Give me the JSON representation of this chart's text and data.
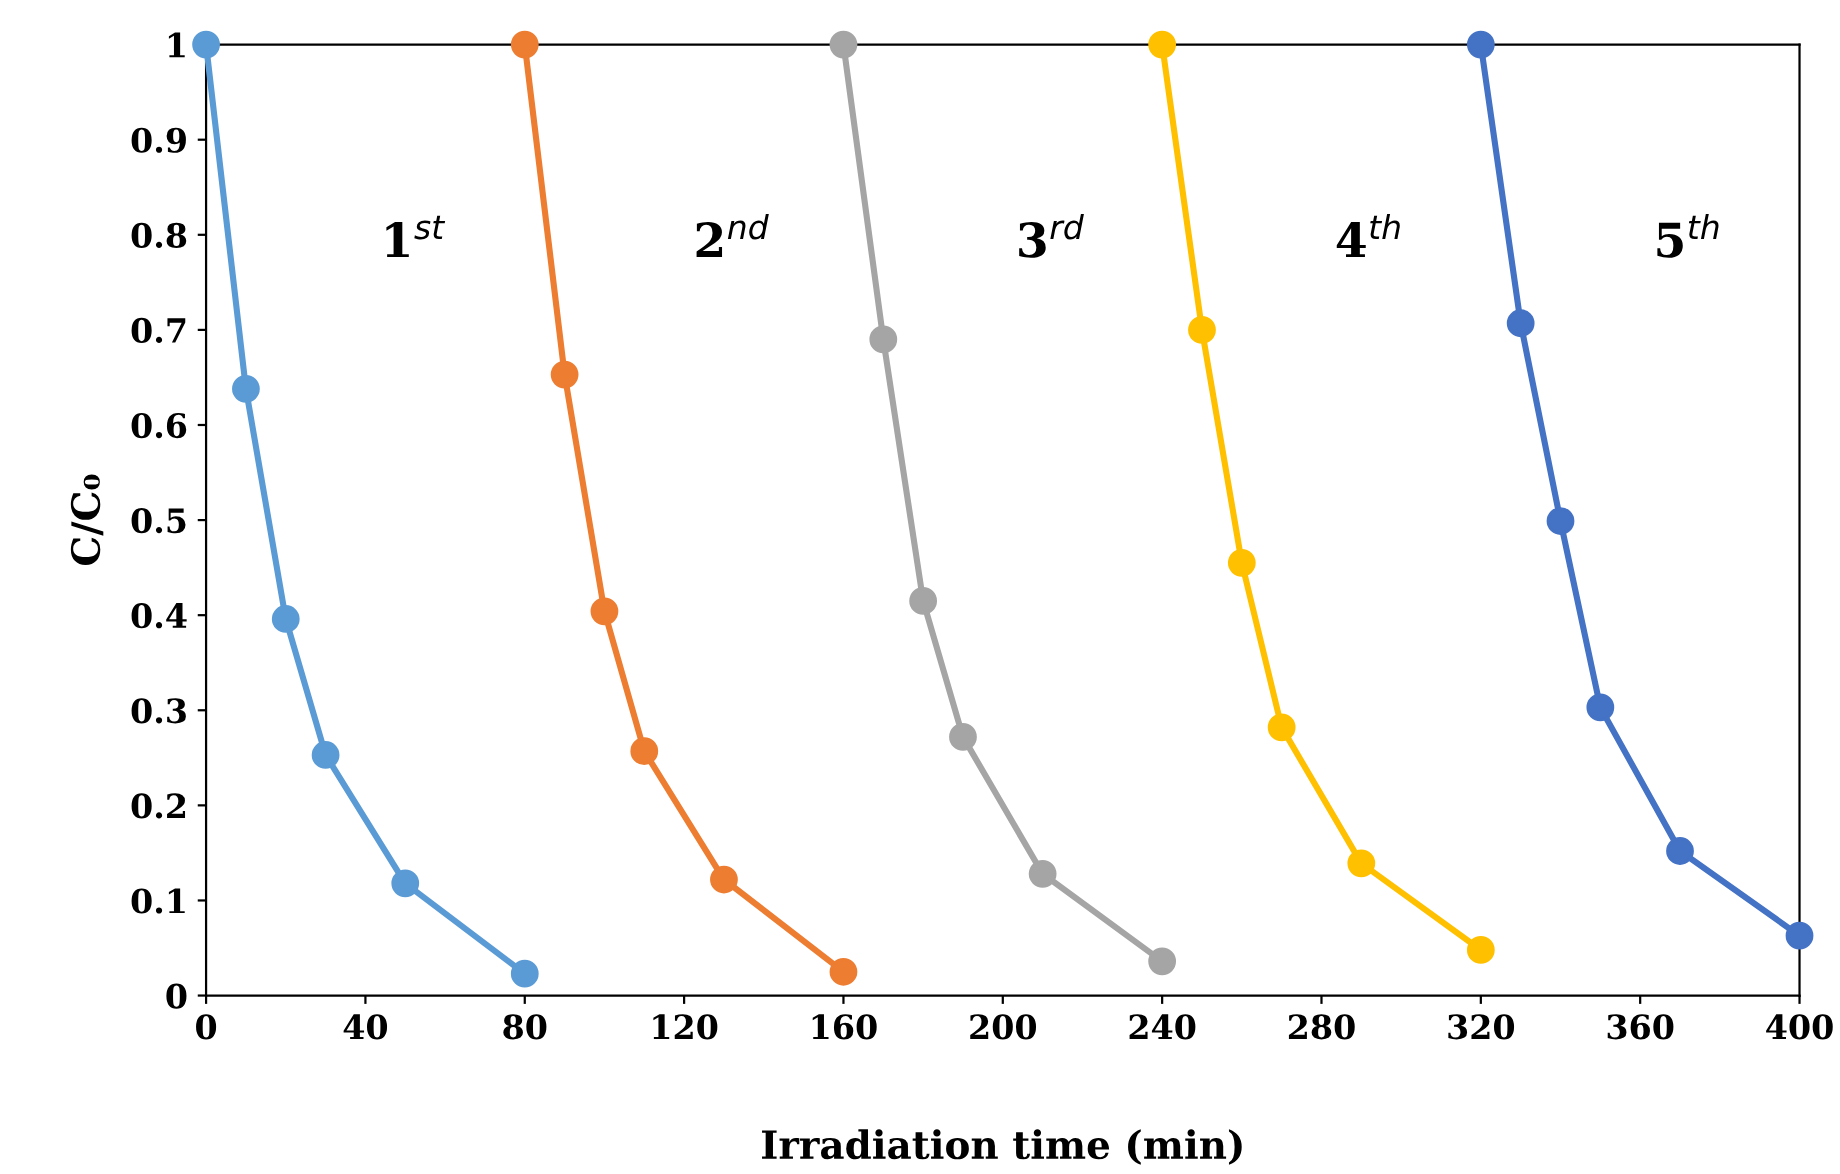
{
  "chart_data": {
    "type": "line",
    "xlabel": "Irradiation time (min)",
    "ylabel": "C/C₀",
    "xlim": [
      0,
      400
    ],
    "xticks": [
      0,
      40,
      80,
      120,
      160,
      200,
      240,
      280,
      320,
      360,
      400
    ],
    "ylim": [
      0,
      1
    ],
    "yticks": [
      0,
      0.1,
      0.2,
      0.3,
      0.4,
      0.5,
      0.6,
      0.7,
      0.8,
      0.9,
      1
    ],
    "grid": false,
    "marker": "circle",
    "line_style": "solid",
    "series": [
      {
        "color": "#5b9bd5",
        "x": [
          0,
          10,
          20,
          30,
          50,
          80
        ],
        "values": [
          1,
          0.638,
          0.396,
          0.253,
          0.118,
          0.023
        ]
      },
      {
        "color": "#ed7d31",
        "x": [
          80,
          90,
          100,
          110,
          130,
          160
        ],
        "values": [
          1,
          0.653,
          0.404,
          0.257,
          0.122,
          0.025
        ]
      },
      {
        "color": "#a5a5a5",
        "x": [
          160,
          170,
          180,
          190,
          210,
          240
        ],
        "values": [
          1,
          0.69,
          0.415,
          0.272,
          0.128,
          0.036
        ]
      },
      {
        "color": "#ffc000",
        "x": [
          240,
          250,
          260,
          270,
          290,
          320
        ],
        "values": [
          1,
          0.7,
          0.455,
          0.282,
          0.139,
          0.048
        ]
      },
      {
        "color": "#4472c4",
        "x": [
          320,
          330,
          340,
          350,
          370,
          400
        ],
        "values": [
          1,
          0.707,
          0.499,
          0.303,
          0.152,
          0.063
        ]
      }
    ],
    "annotations": [
      "1$^{st}$",
      "2$^{nd}$",
      "3$^{rd}$",
      "4$^{th}$",
      "5$^{th}$"
    ]
  }
}
